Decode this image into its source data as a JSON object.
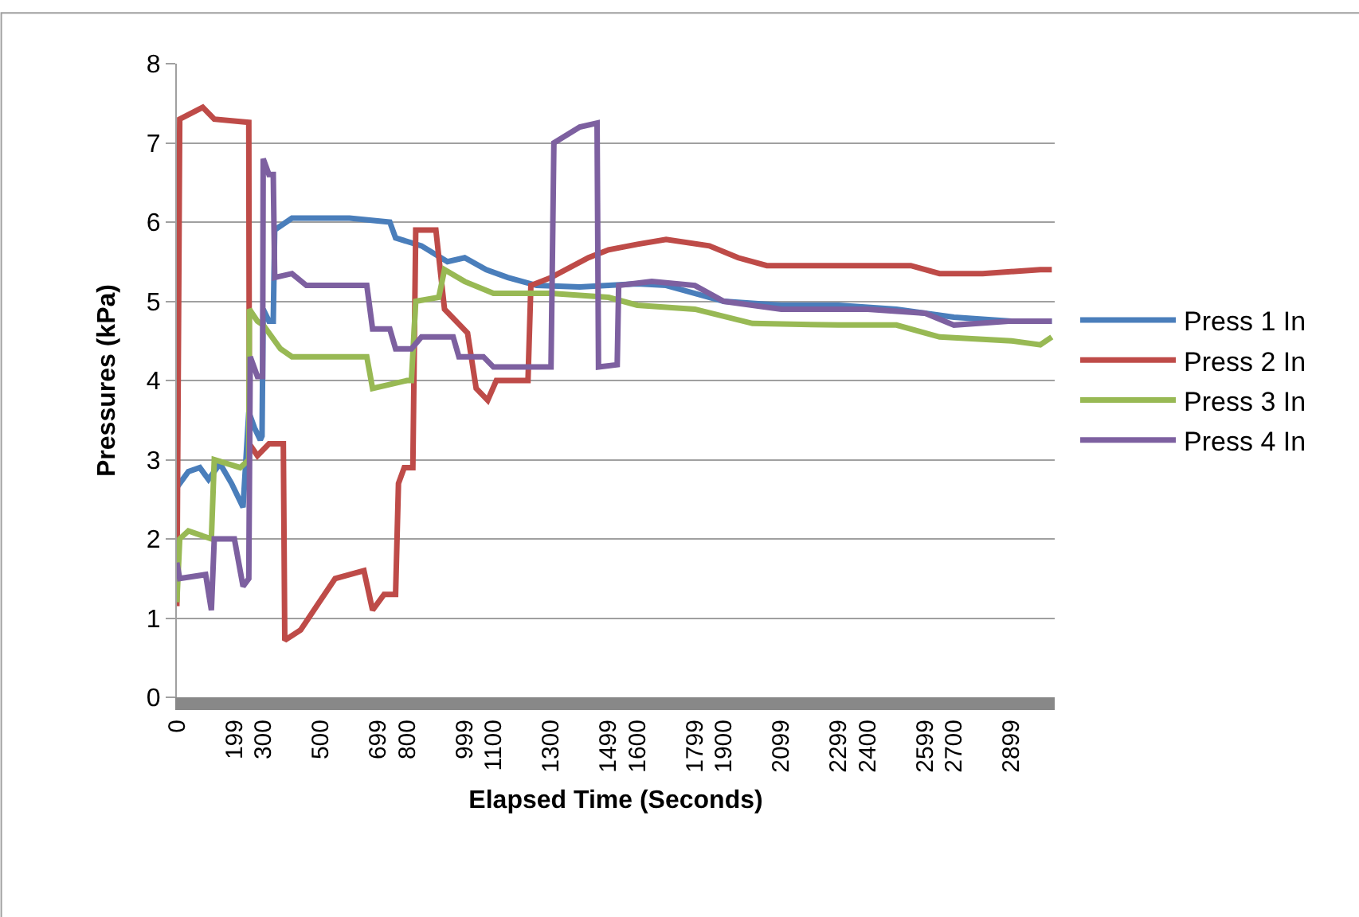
{
  "chart_data": {
    "type": "line",
    "xlabel": "Elapsed Time (Seconds)",
    "ylabel": "Pressures (kPa)",
    "xlim": [
      0,
      3050
    ],
    "xticks": [
      0,
      199,
      300,
      500,
      699,
      800,
      999,
      1100,
      1300,
      1499,
      1600,
      1799,
      1900,
      2099,
      2299,
      2400,
      2599,
      2700,
      2899
    ],
    "ylim": [
      0,
      8
    ],
    "yticks": [
      0,
      1,
      2,
      3,
      4,
      5,
      6,
      7,
      8
    ],
    "grid": "y",
    "legend": "right",
    "marker": "none",
    "line_style": "solid",
    "series": [
      {
        "name": "Press 1 In",
        "color": "#4a7ebb",
        "x": [
          0,
          40,
          80,
          110,
          150,
          190,
          230,
          250,
          270,
          290,
          296,
          300,
          320,
          335,
          340,
          400,
          600,
          740,
          760,
          850,
          940,
          1000,
          1075,
          1150,
          1250,
          1400,
          1500,
          1600,
          1700,
          1900,
          2100,
          2300,
          2500,
          2700,
          2900,
          3040
        ],
        "values": [
          2.65,
          2.85,
          2.9,
          2.75,
          2.95,
          2.7,
          2.4,
          3.6,
          3.4,
          3.25,
          3.3,
          4.9,
          4.75,
          4.75,
          5.9,
          6.05,
          6.05,
          6.0,
          5.8,
          5.7,
          5.5,
          5.55,
          5.4,
          5.3,
          5.2,
          5.18,
          5.2,
          5.22,
          5.2,
          5.0,
          4.95,
          4.95,
          4.9,
          4.8,
          4.75,
          4.75
        ]
      },
      {
        "name": "Press 2 In",
        "color": "#be4b48",
        "x": [
          0,
          10,
          90,
          130,
          250,
          252,
          280,
          320,
          370,
          375,
          430,
          550,
          650,
          680,
          720,
          760,
          770,
          790,
          820,
          830,
          900,
          930,
          1010,
          1040,
          1080,
          1110,
          1220,
          1230,
          1300,
          1430,
          1500,
          1600,
          1700,
          1850,
          1950,
          2050,
          2200,
          2400,
          2550,
          2650,
          2800,
          3000,
          3040
        ],
        "values": [
          1.15,
          7.3,
          7.45,
          7.3,
          7.26,
          3.2,
          3.05,
          3.2,
          3.2,
          0.72,
          0.85,
          1.5,
          1.6,
          1.1,
          1.3,
          1.3,
          2.7,
          2.9,
          2.9,
          5.9,
          5.9,
          4.9,
          4.6,
          3.9,
          3.75,
          4.0,
          4.0,
          5.2,
          5.3,
          5.55,
          5.65,
          5.72,
          5.78,
          5.7,
          5.55,
          5.45,
          5.45,
          5.45,
          5.45,
          5.35,
          5.35,
          5.4,
          5.4
        ]
      },
      {
        "name": "Press 3 In",
        "color": "#98b954",
        "x": [
          0,
          10,
          40,
          120,
          130,
          220,
          250,
          252,
          280,
          300,
          330,
          360,
          400,
          660,
          680,
          800,
          815,
          830,
          910,
          930,
          1000,
          1100,
          1300,
          1500,
          1600,
          1800,
          2000,
          2300,
          2500,
          2650,
          2900,
          3000,
          3040
        ],
        "values": [
          1.2,
          2.0,
          2.1,
          2.0,
          3.0,
          2.9,
          3.0,
          4.9,
          4.75,
          4.7,
          4.55,
          4.4,
          4.3,
          4.3,
          3.9,
          4.0,
          4.0,
          5.0,
          5.05,
          5.4,
          5.25,
          5.1,
          5.1,
          5.05,
          4.95,
          4.9,
          4.72,
          4.7,
          4.7,
          4.55,
          4.5,
          4.45,
          4.55
        ]
      },
      {
        "name": "Press 4 In",
        "color": "#7d60a0",
        "x": [
          0,
          10,
          100,
          120,
          130,
          200,
          230,
          250,
          255,
          280,
          298,
          300,
          320,
          335,
          340,
          400,
          450,
          660,
          680,
          740,
          760,
          815,
          850,
          960,
          980,
          1065,
          1100,
          1300,
          1310,
          1400,
          1460,
          1465,
          1530,
          1535,
          1650,
          1800,
          1900,
          2100,
          2400,
          2600,
          2700,
          2900,
          3040
        ],
        "values": [
          1.7,
          1.5,
          1.55,
          1.1,
          2.0,
          2.0,
          1.4,
          1.5,
          4.3,
          4.05,
          4.05,
          6.8,
          6.6,
          6.6,
          5.3,
          5.35,
          5.2,
          5.2,
          4.65,
          4.65,
          4.4,
          4.4,
          4.55,
          4.55,
          4.3,
          4.3,
          4.17,
          4.17,
          7.0,
          7.2,
          7.25,
          4.17,
          4.2,
          5.2,
          5.25,
          5.2,
          5.0,
          4.9,
          4.9,
          4.85,
          4.7,
          4.75,
          4.75
        ]
      }
    ]
  }
}
